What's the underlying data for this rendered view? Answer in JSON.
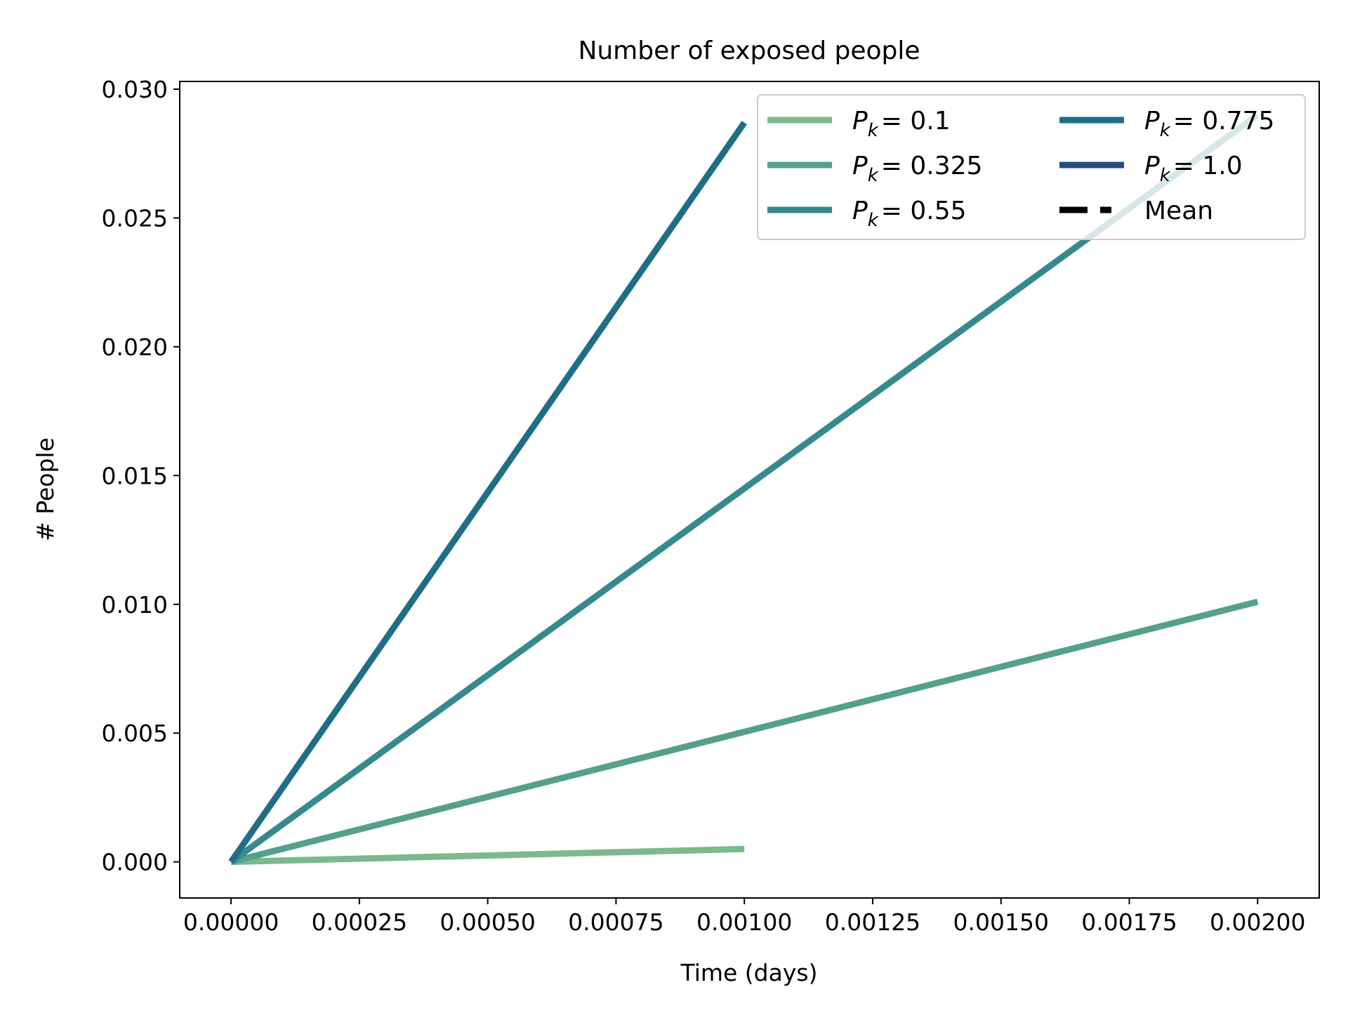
{
  "chart_data": {
    "type": "line",
    "title": "Number of exposed people",
    "xlabel": "Time (days)",
    "ylabel": "# People",
    "xlim": [
      -0.0001,
      0.00212
    ],
    "ylim": [
      -0.0014,
      0.0303
    ],
    "x_ticks": [
      0,
      0.00025,
      0.0005,
      0.00075,
      0.001,
      0.00125,
      0.0015,
      0.00175,
      0.002
    ],
    "x_tick_labels": [
      "0.00000",
      "0.00025",
      "0.00050",
      "0.00075",
      "0.00100",
      "0.00125",
      "0.00150",
      "0.00175",
      "0.00200"
    ],
    "y_ticks": [
      0,
      0.005,
      0.01,
      0.015,
      0.02,
      0.025,
      0.03
    ],
    "y_tick_labels": [
      "0.000",
      "0.005",
      "0.010",
      "0.015",
      "0.020",
      "0.025",
      "0.030"
    ],
    "grid": false,
    "legend_placement": "top-right",
    "legend_columns": 2,
    "series": [
      {
        "name": "P_k = 0.1",
        "label_symbol": "P",
        "label_sub": "k",
        "label_value": "= 0.1",
        "color": "#7bb98e",
        "x": [
          0,
          0.001
        ],
        "y": [
          0,
          0.0005
        ]
      },
      {
        "name": "P_k = 0.325",
        "label_symbol": "P",
        "label_sub": "k",
        "label_value": "= 0.325",
        "color": "#55a08d",
        "x": [
          0,
          0.002
        ],
        "y": [
          0,
          0.0101
        ]
      },
      {
        "name": "P_k = 0.55",
        "label_symbol": "P",
        "label_sub": "k",
        "label_value": "= 0.55",
        "color": "#37898d",
        "x": [
          0,
          0.002
        ],
        "y": [
          0,
          0.029
        ]
      },
      {
        "name": "P_k = 0.775",
        "label_symbol": "P",
        "label_sub": "k",
        "label_value": "= 0.775",
        "color": "#206e86",
        "x": [
          0,
          0.001
        ],
        "y": [
          0,
          0.0287
        ]
      },
      {
        "name": "P_k = 1.0",
        "label_symbol": "P",
        "label_sub": "k",
        "label_value": "= 1.0",
        "color": "#234d7e",
        "x": [],
        "y": []
      }
    ],
    "mean_legend": {
      "label": "Mean",
      "color": "#000000",
      "style": "dashed"
    }
  }
}
